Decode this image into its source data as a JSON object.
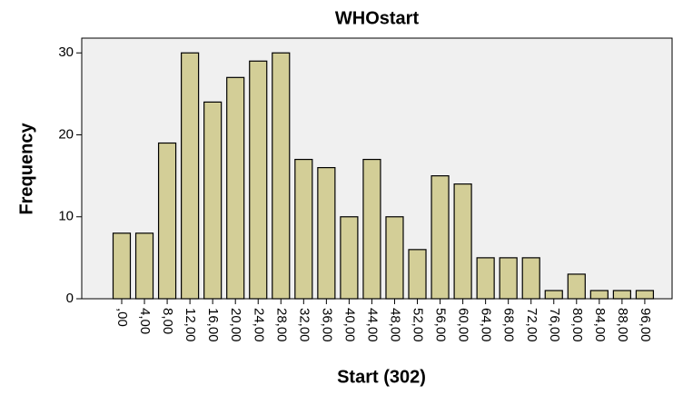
{
  "chart_data": {
    "type": "bar",
    "title": "WHOstart",
    "x_label": "Start (302)",
    "y_label": "Frequency",
    "categories": [
      ",00",
      "4,00",
      "8,00",
      "12,00",
      "16,00",
      "20,00",
      "24,00",
      "28,00",
      "32,00",
      "36,00",
      "40,00",
      "44,00",
      "48,00",
      "52,00",
      "56,00",
      "60,00",
      "64,00",
      "68,00",
      "72,00",
      "76,00",
      "80,00",
      "84,00",
      "88,00",
      "96,00"
    ],
    "values": [
      8,
      8,
      19,
      30,
      24,
      27,
      29,
      30,
      17,
      16,
      10,
      17,
      10,
      6,
      15,
      14,
      5,
      5,
      5,
      1,
      3,
      1,
      1,
      1
    ],
    "color": "#d3ce97",
    "ylim": [
      0,
      31.8
    ],
    "yticks": [
      0,
      10,
      20,
      30
    ]
  }
}
